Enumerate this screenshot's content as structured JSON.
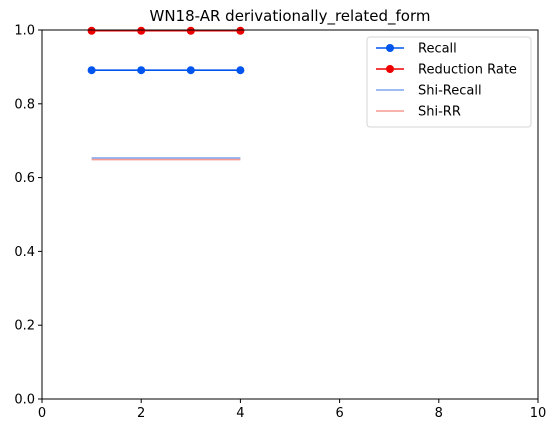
{
  "chart_data": {
    "type": "line",
    "title": "WN18-AR derivationally_related_form",
    "xlabel": "",
    "ylabel": "",
    "xlim": [
      0,
      10
    ],
    "ylim": [
      0,
      1.0
    ],
    "xticks": [
      0,
      2,
      4,
      6,
      8,
      10
    ],
    "xtick_labels": [
      "0",
      "2",
      "4",
      "6",
      "8",
      "10"
    ],
    "yticks": [
      0,
      0.2,
      0.4,
      0.6,
      0.8,
      1.0
    ],
    "ytick_labels": [
      "0.0",
      "0.2",
      "0.4",
      "0.6",
      "0.8",
      "1.0"
    ],
    "grid": false,
    "legend_position": "top-right",
    "series": [
      {
        "name": "Recall",
        "x": [
          1,
          2,
          3,
          4
        ],
        "y": [
          0.891,
          0.891,
          0.891,
          0.891
        ],
        "color": "#0055ee",
        "marker": "circle"
      },
      {
        "name": "Reduction Rate",
        "x": [
          1,
          2,
          3,
          4
        ],
        "y": [
          0.998,
          0.998,
          0.998,
          0.998
        ],
        "color": "#ee0000",
        "marker": "circle"
      },
      {
        "name": "Shi-Recall",
        "x": [
          1,
          4
        ],
        "y": [
          0.653,
          0.653
        ],
        "color": "#7aa6f0",
        "marker": "none"
      },
      {
        "name": "Shi-RR",
        "x": [
          1,
          4
        ],
        "y": [
          0.649,
          0.649
        ],
        "color": "#f79a92",
        "marker": "none"
      }
    ]
  }
}
